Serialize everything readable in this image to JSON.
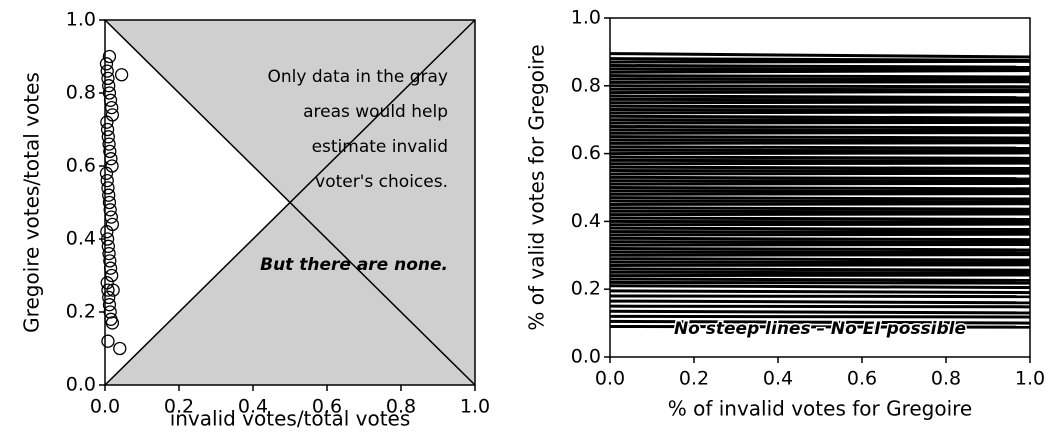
{
  "chart_data": [
    {
      "type": "scatter",
      "xlabel": "invalid votes/total votes",
      "ylabel": "Gregoire votes/total votes",
      "annotation_lines": [
        "Only data in the gray",
        "areas would help",
        "estimate invalid",
        "voter's choices."
      ],
      "annotation_emphasis": "But there are none.",
      "xlim": [
        0,
        1
      ],
      "ylim": [
        0,
        1
      ],
      "xticks": [
        {
          "value": 0,
          "label": "0.0"
        },
        0.2,
        0.4,
        0.6,
        0.8,
        {
          "value": 1,
          "label": "1.0"
        }
      ],
      "yticks": [
        {
          "value": 0,
          "label": "0.0"
        },
        0.2,
        0.4,
        0.6,
        0.8,
        {
          "value": 1,
          "label": "1.0"
        }
      ],
      "color": "#000000",
      "shade_color": "#cfcfcf",
      "x": [
        0.004,
        0.006,
        0.008,
        0.01,
        0.012,
        0.015,
        0.018,
        0.02,
        0.005,
        0.007,
        0.009,
        0.011,
        0.013,
        0.016,
        0.019,
        0.004,
        0.006,
        0.008,
        0.01,
        0.012,
        0.014,
        0.017,
        0.02,
        0.005,
        0.007,
        0.009,
        0.011,
        0.013,
        0.015,
        0.018,
        0.006,
        0.008,
        0.01,
        0.012,
        0.014,
        0.016,
        0.02,
        0.022,
        0.045,
        0.04,
        0.008,
        0.012
      ],
      "y": [
        0.88,
        0.86,
        0.84,
        0.82,
        0.8,
        0.78,
        0.76,
        0.74,
        0.72,
        0.7,
        0.68,
        0.66,
        0.64,
        0.62,
        0.6,
        0.58,
        0.56,
        0.54,
        0.52,
        0.5,
        0.48,
        0.46,
        0.44,
        0.42,
        0.4,
        0.38,
        0.36,
        0.34,
        0.32,
        0.3,
        0.28,
        0.26,
        0.24,
        0.22,
        0.2,
        0.18,
        0.17,
        0.26,
        0.85,
        0.1,
        0.12,
        0.9
      ]
    },
    {
      "type": "line",
      "xlabel": "% of invalid votes for Gregoire",
      "ylabel": "% of valid votes for Gregoire",
      "annotation": "No steep lines – No EI possible",
      "xlim": [
        0,
        1
      ],
      "ylim": [
        0,
        1
      ],
      "xticks": [
        {
          "value": 0,
          "label": "0.0"
        },
        0.2,
        0.4,
        0.6,
        0.8,
        {
          "value": 1,
          "label": "1.0"
        }
      ],
      "yticks": [
        {
          "value": 0,
          "label": "0.0"
        },
        0.2,
        0.4,
        0.6,
        0.8,
        {
          "value": 1,
          "label": "1.0"
        }
      ],
      "color": "#000000",
      "x": [
        0,
        1
      ],
      "series": [
        {
          "values": [
            0.895,
            0.885
          ]
        },
        {
          "values": [
            0.88,
            0.875
          ]
        },
        {
          "values": [
            0.87,
            0.872
          ]
        },
        {
          "values": [
            0.86,
            0.855
          ]
        },
        {
          "values": [
            0.85,
            0.848
          ]
        },
        {
          "values": [
            0.84,
            0.845
          ]
        },
        {
          "values": [
            0.83,
            0.826
          ]
        },
        {
          "values": [
            0.82,
            0.818
          ]
        },
        {
          "values": [
            0.81,
            0.812
          ]
        },
        {
          "values": [
            0.8,
            0.797
          ]
        },
        {
          "values": [
            0.79,
            0.788
          ]
        },
        {
          "values": [
            0.78,
            0.783
          ]
        },
        {
          "values": [
            0.77,
            0.765
          ]
        },
        {
          "values": [
            0.76,
            0.758
          ]
        },
        {
          "values": [
            0.75,
            0.752
          ]
        },
        {
          "values": [
            0.74,
            0.736
          ]
        },
        {
          "values": [
            0.73,
            0.728
          ]
        },
        {
          "values": [
            0.72,
            0.723
          ]
        },
        {
          "values": [
            0.71,
            0.705
          ]
        },
        {
          "values": [
            0.7,
            0.698
          ]
        },
        {
          "values": [
            0.69,
            0.692
          ]
        },
        {
          "values": [
            0.68,
            0.676
          ]
        },
        {
          "values": [
            0.67,
            0.668
          ]
        },
        {
          "values": [
            0.66,
            0.662
          ]
        },
        {
          "values": [
            0.65,
            0.646
          ]
        },
        {
          "values": [
            0.64,
            0.638
          ]
        },
        {
          "values": [
            0.63,
            0.632
          ]
        },
        {
          "values": [
            0.62,
            0.616
          ]
        },
        {
          "values": [
            0.61,
            0.608
          ]
        },
        {
          "values": [
            0.6,
            0.602
          ]
        },
        {
          "values": [
            0.59,
            0.586
          ]
        },
        {
          "values": [
            0.58,
            0.578
          ]
        },
        {
          "values": [
            0.57,
            0.572
          ]
        },
        {
          "values": [
            0.56,
            0.556
          ]
        },
        {
          "values": [
            0.55,
            0.548
          ]
        },
        {
          "values": [
            0.54,
            0.542
          ]
        },
        {
          "values": [
            0.53,
            0.526
          ]
        },
        {
          "values": [
            0.52,
            0.518
          ]
        },
        {
          "values": [
            0.51,
            0.512
          ]
        },
        {
          "values": [
            0.5,
            0.496
          ]
        },
        {
          "values": [
            0.49,
            0.488
          ]
        },
        {
          "values": [
            0.48,
            0.482
          ]
        },
        {
          "values": [
            0.47,
            0.466
          ]
        },
        {
          "values": [
            0.46,
            0.458
          ]
        },
        {
          "values": [
            0.45,
            0.452
          ]
        },
        {
          "values": [
            0.44,
            0.436
          ]
        },
        {
          "values": [
            0.43,
            0.428
          ]
        },
        {
          "values": [
            0.42,
            0.422
          ]
        },
        {
          "values": [
            0.41,
            0.406
          ]
        },
        {
          "values": [
            0.4,
            0.398
          ]
        },
        {
          "values": [
            0.39,
            0.392
          ]
        },
        {
          "values": [
            0.38,
            0.376
          ]
        },
        {
          "values": [
            0.37,
            0.368
          ]
        },
        {
          "values": [
            0.36,
            0.362
          ]
        },
        {
          "values": [
            0.35,
            0.346
          ]
        },
        {
          "values": [
            0.34,
            0.338
          ]
        },
        {
          "values": [
            0.33,
            0.332
          ]
        },
        {
          "values": [
            0.32,
            0.316
          ]
        },
        {
          "values": [
            0.31,
            0.308
          ]
        },
        {
          "values": [
            0.3,
            0.302
          ]
        },
        {
          "values": [
            0.29,
            0.286
          ]
        },
        {
          "values": [
            0.28,
            0.278
          ]
        },
        {
          "values": [
            0.27,
            0.272
          ]
        },
        {
          "values": [
            0.26,
            0.256
          ]
        },
        {
          "values": [
            0.25,
            0.248
          ]
        },
        {
          "values": [
            0.24,
            0.242
          ]
        },
        {
          "values": [
            0.23,
            0.226
          ]
        },
        {
          "values": [
            0.22,
            0.218
          ]
        },
        {
          "values": [
            0.21,
            0.205
          ]
        },
        {
          "values": [
            0.195,
            0.19
          ]
        },
        {
          "values": [
            0.18,
            0.178
          ]
        },
        {
          "values": [
            0.165,
            0.16
          ]
        },
        {
          "values": [
            0.15,
            0.148
          ]
        },
        {
          "values": [
            0.135,
            0.13
          ]
        },
        {
          "values": [
            0.12,
            0.118
          ]
        },
        {
          "values": [
            0.105,
            0.1
          ]
        },
        {
          "values": [
            0.09,
            0.088
          ]
        }
      ]
    }
  ]
}
